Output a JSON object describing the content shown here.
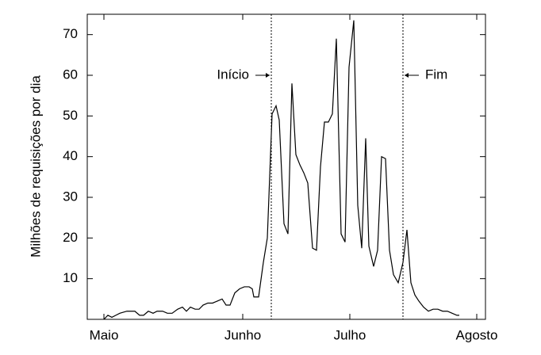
{
  "chart_data": {
    "type": "line",
    "y_label": "Milhões de requisições por dia",
    "xlim": [
      0,
      100.4
    ],
    "ylim": [
      0,
      75
    ],
    "xticks": [
      {
        "value": 4.2,
        "label": "Maio"
      },
      {
        "value": 39.2,
        "label": "Junho"
      },
      {
        "value": 66.2,
        "label": "Julho"
      },
      {
        "value": 98.2,
        "label": "Agosto"
      }
    ],
    "yticks": [
      10,
      20,
      30,
      40,
      50,
      60,
      70
    ],
    "events": [
      {
        "label": "Início",
        "x": 46.4,
        "side": "left"
      },
      {
        "label": "Fim",
        "x": 79.6,
        "side": "right"
      }
    ],
    "series": [
      {
        "color": "#000000",
        "x": [
          4.2,
          5.2,
          6.2,
          7.2,
          8.2,
          10,
          12,
          13.2,
          14.2,
          15.4,
          16.6,
          17.6,
          19,
          20.2,
          21.4,
          22.8,
          24,
          25,
          26,
          27.2,
          28.2,
          29.2,
          30.4,
          31.6,
          32.8,
          34,
          35,
          36,
          37.2,
          38.4,
          39.6,
          40.8,
          41.6,
          42,
          43.2,
          44.4,
          45.4,
          46.6,
          47.6,
          48.4,
          49.6,
          50.6,
          51.6,
          52.6,
          53.6,
          54.6,
          55.6,
          56.8,
          57.8,
          58.8,
          59.8,
          60.8,
          61.8,
          62.8,
          64,
          65,
          66,
          67.2,
          68.2,
          69.2,
          70.2,
          71,
          72.2,
          73.2,
          74.2,
          75.2,
          76.2,
          77.2,
          78.4,
          79.6,
          80.6,
          81.6,
          82.6,
          83.6,
          84.8,
          86,
          87.2,
          88.4,
          89.6,
          90.8,
          92,
          93.2,
          93.8
        ],
        "values": [
          0,
          1,
          0.5,
          1,
          1.5,
          2,
          2,
          1,
          1,
          2,
          1.5,
          2,
          2,
          1.5,
          1.5,
          2.5,
          3,
          2,
          3,
          2.5,
          2.5,
          3.5,
          4,
          4,
          4.5,
          5,
          3.5,
          3.5,
          6.5,
          7.5,
          8,
          8,
          7.5,
          5.5,
          5.5,
          14,
          20,
          50.5,
          52.5,
          49,
          23.5,
          21,
          58,
          40.5,
          38,
          36,
          33.5,
          17.5,
          17,
          37.5,
          48.5,
          48.5,
          50.5,
          69,
          21,
          19,
          62,
          73.5,
          28,
          17.5,
          44.5,
          18,
          13,
          17,
          40,
          39.5,
          17,
          11,
          9,
          14,
          22,
          9,
          6,
          4.5,
          3,
          2,
          2.5,
          2.5,
          2,
          2,
          1.5,
          1,
          1
        ]
      }
    ]
  }
}
